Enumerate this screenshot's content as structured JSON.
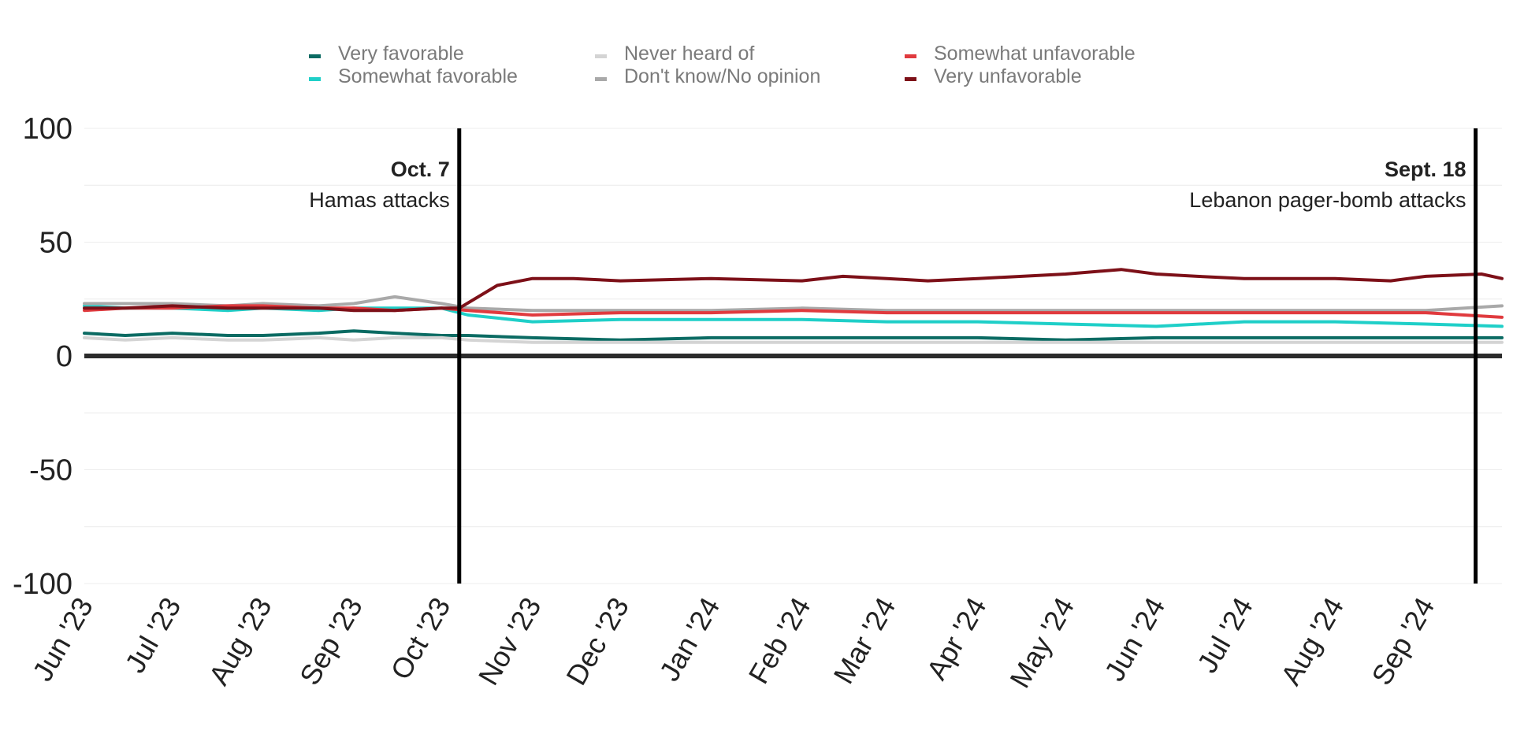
{
  "chart_data": {
    "type": "line",
    "ylim": [
      -100,
      100
    ],
    "yticks": [
      100,
      50,
      0,
      -50,
      -100
    ],
    "xlim": [
      "2023-06-01",
      "2024-09-27"
    ],
    "xticks": [
      {
        "date": "2023-06-01",
        "label": "Jun '23"
      },
      {
        "date": "2023-07-01",
        "label": "Jul '23"
      },
      {
        "date": "2023-08-01",
        "label": "Aug '23"
      },
      {
        "date": "2023-09-01",
        "label": "Sep '23"
      },
      {
        "date": "2023-10-01",
        "label": "Oct '23"
      },
      {
        "date": "2023-11-01",
        "label": "Nov '23"
      },
      {
        "date": "2023-12-01",
        "label": "Dec '23"
      },
      {
        "date": "2024-01-01",
        "label": "Jan '24"
      },
      {
        "date": "2024-02-01",
        "label": "Feb '24"
      },
      {
        "date": "2024-03-01",
        "label": "Mar '24"
      },
      {
        "date": "2024-04-01",
        "label": "Apr '24"
      },
      {
        "date": "2024-05-01",
        "label": "May '24"
      },
      {
        "date": "2024-06-01",
        "label": "Jun '24"
      },
      {
        "date": "2024-07-01",
        "label": "Jul '24"
      },
      {
        "date": "2024-08-01",
        "label": "Aug '24"
      },
      {
        "date": "2024-09-01",
        "label": "Sep '24"
      }
    ],
    "legend_position": "top",
    "annotations": [
      {
        "date": "2023-10-07",
        "title": "Oct. 7",
        "text": "Hamas attacks"
      },
      {
        "date": "2024-09-18",
        "title": "Sept. 18",
        "text": "Lebanon pager-bomb attacks"
      }
    ],
    "series": [
      {
        "name": "Very favorable",
        "color": "#0b6b63",
        "points": [
          [
            "2023-06-01",
            10
          ],
          [
            "2023-06-15",
            9
          ],
          [
            "2023-07-01",
            10
          ],
          [
            "2023-07-20",
            9
          ],
          [
            "2023-08-01",
            9
          ],
          [
            "2023-08-20",
            10
          ],
          [
            "2023-09-01",
            11
          ],
          [
            "2023-09-15",
            10
          ],
          [
            "2023-10-01",
            9
          ],
          [
            "2023-10-10",
            9
          ],
          [
            "2023-11-01",
            8
          ],
          [
            "2023-12-01",
            7
          ],
          [
            "2024-01-01",
            8
          ],
          [
            "2024-02-01",
            8
          ],
          [
            "2024-03-01",
            8
          ],
          [
            "2024-04-01",
            8
          ],
          [
            "2024-05-01",
            7
          ],
          [
            "2024-06-01",
            8
          ],
          [
            "2024-07-01",
            8
          ],
          [
            "2024-08-01",
            8
          ],
          [
            "2024-09-01",
            8
          ],
          [
            "2024-09-27",
            8
          ]
        ]
      },
      {
        "name": "Somewhat favorable",
        "color": "#1fcfc8",
        "points": [
          [
            "2023-06-01",
            22
          ],
          [
            "2023-06-15",
            21
          ],
          [
            "2023-07-01",
            21
          ],
          [
            "2023-07-20",
            20
          ],
          [
            "2023-08-01",
            21
          ],
          [
            "2023-08-20",
            20
          ],
          [
            "2023-09-01",
            21
          ],
          [
            "2023-09-15",
            21
          ],
          [
            "2023-10-01",
            21
          ],
          [
            "2023-10-10",
            18
          ],
          [
            "2023-11-01",
            15
          ],
          [
            "2023-12-01",
            16
          ],
          [
            "2024-01-01",
            16
          ],
          [
            "2024-02-01",
            16
          ],
          [
            "2024-03-01",
            15
          ],
          [
            "2024-04-01",
            15
          ],
          [
            "2024-05-01",
            14
          ],
          [
            "2024-06-01",
            13
          ],
          [
            "2024-07-01",
            15
          ],
          [
            "2024-08-01",
            15
          ],
          [
            "2024-09-01",
            14
          ],
          [
            "2024-09-27",
            13
          ]
        ]
      },
      {
        "name": "Never heard of",
        "color": "#d4d4d4",
        "points": [
          [
            "2023-06-01",
            8
          ],
          [
            "2023-06-15",
            7
          ],
          [
            "2023-07-01",
            8
          ],
          [
            "2023-07-20",
            7
          ],
          [
            "2023-08-01",
            7
          ],
          [
            "2023-08-20",
            8
          ],
          [
            "2023-09-01",
            7
          ],
          [
            "2023-09-15",
            8
          ],
          [
            "2023-10-01",
            8
          ],
          [
            "2023-10-10",
            7
          ],
          [
            "2023-11-01",
            6
          ],
          [
            "2023-12-01",
            6
          ],
          [
            "2024-01-01",
            6
          ],
          [
            "2024-02-01",
            6
          ],
          [
            "2024-03-01",
            6
          ],
          [
            "2024-04-01",
            6
          ],
          [
            "2024-05-01",
            6
          ],
          [
            "2024-06-01",
            6
          ],
          [
            "2024-07-01",
            6
          ],
          [
            "2024-08-01",
            6
          ],
          [
            "2024-09-01",
            6
          ],
          [
            "2024-09-27",
            6
          ]
        ]
      },
      {
        "name": "Don't know/No opinion",
        "color": "#a9a9a9",
        "points": [
          [
            "2023-06-01",
            23
          ],
          [
            "2023-06-15",
            23
          ],
          [
            "2023-07-01",
            23
          ],
          [
            "2023-07-20",
            22
          ],
          [
            "2023-08-01",
            23
          ],
          [
            "2023-08-20",
            22
          ],
          [
            "2023-09-01",
            23
          ],
          [
            "2023-09-15",
            26
          ],
          [
            "2023-10-01",
            23
          ],
          [
            "2023-10-10",
            21
          ],
          [
            "2023-11-01",
            20
          ],
          [
            "2023-12-01",
            20
          ],
          [
            "2024-01-01",
            20
          ],
          [
            "2024-02-01",
            21
          ],
          [
            "2024-03-01",
            20
          ],
          [
            "2024-04-01",
            20
          ],
          [
            "2024-05-01",
            20
          ],
          [
            "2024-06-01",
            20
          ],
          [
            "2024-07-01",
            20
          ],
          [
            "2024-08-01",
            20
          ],
          [
            "2024-09-01",
            20
          ],
          [
            "2024-09-27",
            22
          ]
        ]
      },
      {
        "name": "Somewhat unfavorable",
        "color": "#e03a3e",
        "points": [
          [
            "2023-06-01",
            20
          ],
          [
            "2023-06-15",
            21
          ],
          [
            "2023-07-01",
            21
          ],
          [
            "2023-07-20",
            22
          ],
          [
            "2023-08-01",
            22
          ],
          [
            "2023-08-20",
            21
          ],
          [
            "2023-09-01",
            21
          ],
          [
            "2023-09-15",
            20
          ],
          [
            "2023-10-01",
            21
          ],
          [
            "2023-10-10",
            20
          ],
          [
            "2023-11-01",
            18
          ],
          [
            "2023-12-01",
            19
          ],
          [
            "2024-01-01",
            19
          ],
          [
            "2024-02-01",
            20
          ],
          [
            "2024-03-01",
            19
          ],
          [
            "2024-04-01",
            19
          ],
          [
            "2024-05-01",
            19
          ],
          [
            "2024-06-01",
            19
          ],
          [
            "2024-07-01",
            19
          ],
          [
            "2024-08-01",
            19
          ],
          [
            "2024-09-01",
            19
          ],
          [
            "2024-09-27",
            17
          ]
        ]
      },
      {
        "name": "Very unfavorable",
        "color": "#7d1018",
        "points": [
          [
            "2023-06-01",
            21
          ],
          [
            "2023-06-15",
            21
          ],
          [
            "2023-07-01",
            22
          ],
          [
            "2023-07-20",
            21
          ],
          [
            "2023-08-01",
            21
          ],
          [
            "2023-08-20",
            21
          ],
          [
            "2023-09-01",
            20
          ],
          [
            "2023-09-15",
            20
          ],
          [
            "2023-10-01",
            21
          ],
          [
            "2023-10-07",
            21
          ],
          [
            "2023-10-20",
            31
          ],
          [
            "2023-11-01",
            34
          ],
          [
            "2023-11-15",
            34
          ],
          [
            "2023-12-01",
            33
          ],
          [
            "2024-01-01",
            34
          ],
          [
            "2024-02-01",
            33
          ],
          [
            "2024-02-15",
            35
          ],
          [
            "2024-03-01",
            34
          ],
          [
            "2024-03-15",
            33
          ],
          [
            "2024-04-01",
            34
          ],
          [
            "2024-05-01",
            36
          ],
          [
            "2024-05-20",
            38
          ],
          [
            "2024-06-01",
            36
          ],
          [
            "2024-06-15",
            35
          ],
          [
            "2024-07-01",
            34
          ],
          [
            "2024-08-01",
            34
          ],
          [
            "2024-08-20",
            33
          ],
          [
            "2024-09-01",
            35
          ],
          [
            "2024-09-20",
            36
          ],
          [
            "2024-09-27",
            34
          ]
        ]
      }
    ]
  }
}
